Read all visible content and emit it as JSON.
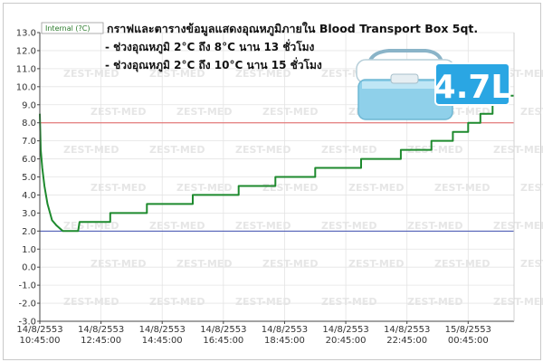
{
  "chart_data": {
    "type": "line",
    "legend_label": "Internal (?C)",
    "caption": {
      "title": "กราฟและตารางข้อมูลแสดงอุณหภูมิภายใน Blood Transport Box 5qt.",
      "line1": "- ช่วงอุณหภูมิ 2°C ถึง 8°C  นาน 13 ชั่วโมง",
      "line2": "- ช่วงอุณหภูมิ 2°C ถึง 10°C นาน 15 ชั่วโมง"
    },
    "badge": "4.7L",
    "watermark": "ZEST-MED",
    "y_ticks": [
      "13.0",
      "12.0",
      "11.0",
      "10.0",
      "9.0",
      "8.0",
      "7.0",
      "6.0",
      "5.0",
      "4.0",
      "3.0",
      "2.0",
      "1.0",
      "0.0",
      "-1.0",
      "-2.0",
      "-3.0"
    ],
    "x_ticks": [
      {
        "date": "14/8/2553",
        "time": "10:45:00"
      },
      {
        "date": "14/8/2553",
        "time": "12:45:00"
      },
      {
        "date": "14/8/2553",
        "time": "14:45:00"
      },
      {
        "date": "14/8/2553",
        "time": "16:45:00"
      },
      {
        "date": "14/8/2553",
        "time": "18:45:00"
      },
      {
        "date": "14/8/2553",
        "time": "20:45:00"
      },
      {
        "date": "14/8/2553",
        "time": "22:45:00"
      },
      {
        "date": "15/8/2553",
        "time": "00:45:00"
      }
    ],
    "ylim": [
      -3,
      13
    ],
    "xlim_hours": [
      0,
      15.5
    ],
    "reference_lines": [
      {
        "name": "upper limit",
        "value": 8.0,
        "color": "#e06060"
      },
      {
        "name": "lower limit",
        "value": 2.0,
        "color": "#4050b0"
      }
    ],
    "series": [
      {
        "color": "#1e8a2e",
        "points": [
          [
            0.0,
            8.5
          ],
          [
            0.03,
            6.5
          ],
          [
            0.08,
            5.5
          ],
          [
            0.15,
            4.5
          ],
          [
            0.25,
            3.5
          ],
          [
            0.4,
            2.6
          ],
          [
            0.55,
            2.3
          ],
          [
            0.75,
            2.0
          ],
          [
            1.25,
            2.0
          ],
          [
            1.3,
            2.5
          ],
          [
            2.3,
            2.5
          ],
          [
            2.3,
            3.0
          ],
          [
            3.5,
            3.0
          ],
          [
            3.5,
            3.5
          ],
          [
            5.0,
            3.5
          ],
          [
            5.0,
            4.0
          ],
          [
            6.5,
            4.0
          ],
          [
            6.5,
            4.5
          ],
          [
            7.7,
            4.5
          ],
          [
            7.7,
            5.0
          ],
          [
            9.0,
            5.0
          ],
          [
            9.0,
            5.5
          ],
          [
            10.5,
            5.5
          ],
          [
            10.5,
            6.0
          ],
          [
            11.8,
            6.0
          ],
          [
            11.8,
            6.5
          ],
          [
            12.8,
            6.5
          ],
          [
            12.8,
            7.0
          ],
          [
            13.5,
            7.0
          ],
          [
            13.5,
            7.5
          ],
          [
            14.0,
            7.5
          ],
          [
            14.0,
            8.0
          ],
          [
            14.4,
            8.0
          ],
          [
            14.4,
            8.5
          ],
          [
            14.8,
            8.5
          ],
          [
            14.8,
            9.0
          ],
          [
            15.1,
            9.0
          ],
          [
            15.1,
            9.5
          ],
          [
            15.5,
            9.5
          ]
        ]
      }
    ]
  }
}
